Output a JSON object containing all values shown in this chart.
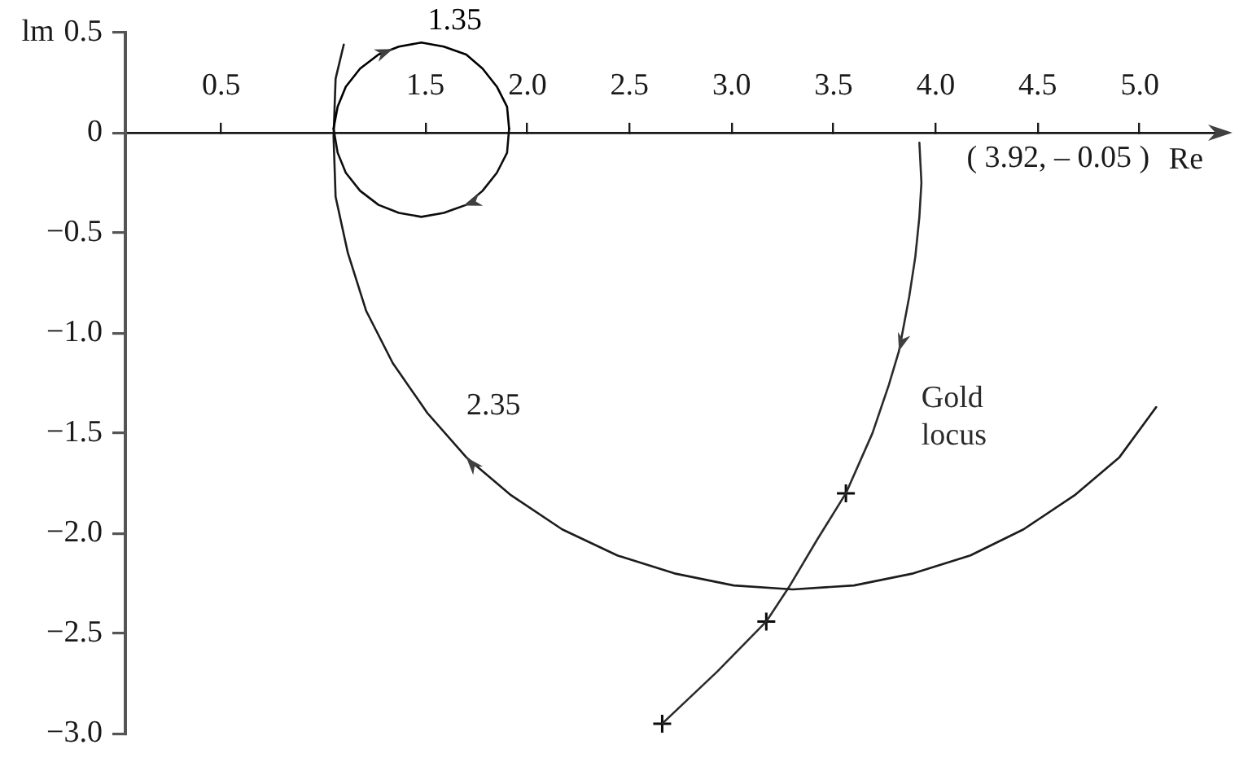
{
  "chart_data": {
    "type": "line",
    "xlabel": "Re",
    "ylabel": "lm",
    "annotations": [
      {
        "text": "( 3.92, – 0.05 )",
        "x": 3.92,
        "y": -0.05
      }
    ],
    "xlim": [
      0.03,
      5.43
    ],
    "ylim": [
      -3,
      0.5
    ],
    "xticks": [
      0.5,
      1.5,
      {
        "value": 2,
        "label": "2.0"
      },
      2.5,
      {
        "value": 3,
        "label": "3.0"
      },
      3.5,
      {
        "value": 4,
        "label": "4.0"
      },
      4.5,
      {
        "value": 5,
        "label": "5.0"
      }
    ],
    "yticks": [
      0.5,
      0,
      {
        "value": -0.5,
        "label": "−0.5"
      },
      {
        "value": -1,
        "label": "−1.0"
      },
      {
        "value": -1.5,
        "label": "−1.5"
      },
      {
        "value": -2,
        "label": "−2.0"
      },
      {
        "value": -2.5,
        "label": "−2.5"
      },
      {
        "value": -3,
        "label": "−3.0"
      }
    ],
    "line_style": "solid",
    "series": [
      {
        "name": "1.35",
        "color": "#000000",
        "x": [
          1.05,
          1.07,
          1.11,
          1.18,
          1.27,
          1.37,
          1.48,
          1.59,
          1.7,
          1.78,
          1.85,
          1.9,
          1.91
        ],
        "values": [
          0.02,
          0.13,
          0.23,
          0.32,
          0.39,
          0.43,
          0.45,
          0.43,
          0.39,
          0.32,
          0.23,
          0.13,
          0.02
        ]
      },
      {
        "color": "#0d0d0d",
        "x": [
          1.91,
          1.9,
          1.85,
          1.78,
          1.7,
          1.59,
          1.48,
          1.37,
          1.27,
          1.18,
          1.11,
          1.07,
          1.05
        ],
        "values": [
          0.02,
          -0.1,
          -0.2,
          -0.29,
          -0.36,
          -0.4,
          -0.42,
          -0.4,
          -0.36,
          -0.29,
          -0.2,
          -0.1,
          0.02
        ]
      },
      {
        "name": "2.35",
        "color": "#1c1c1c",
        "x": [
          5.08,
          4.9,
          4.68,
          4.43,
          4.17,
          3.89,
          3.6,
          3.3,
          3.01,
          2.72,
          2.44,
          2.17,
          1.92,
          1.7,
          1.51,
          1.34,
          1.21,
          1.12,
          1.06,
          1.05,
          1.06,
          1.1
        ],
        "values": [
          -1.37,
          -1.62,
          -1.81,
          -1.98,
          -2.11,
          -2.2,
          -2.26,
          -2.28,
          -2.26,
          -2.2,
          -2.11,
          -1.98,
          -1.81,
          -1.62,
          -1.4,
          -1.15,
          -0.89,
          -0.6,
          -0.32,
          -0.02,
          0.27,
          0.44
        ]
      },
      {
        "name": "Gold locus",
        "color": "#2a2a2a",
        "x": [
          3.92,
          3.93,
          3.92,
          3.9,
          3.87,
          3.82,
          3.77,
          3.69,
          3.56,
          3.42,
          3.28,
          3.17,
          2.93,
          2.66
        ],
        "values": [
          -0.05,
          -0.25,
          -0.42,
          -0.62,
          -0.82,
          -1.09,
          -1.26,
          -1.5,
          -1.8,
          -2.03,
          -2.27,
          -2.44,
          -2.69,
          -2.95
        ]
      },
      {
        "type": "scatter",
        "marker": "cross",
        "color": "#0a0a0a",
        "x": [
          3.56,
          3.17,
          2.66
        ],
        "values": [
          -1.8,
          -2.44,
          -2.95
        ]
      }
    ]
  }
}
